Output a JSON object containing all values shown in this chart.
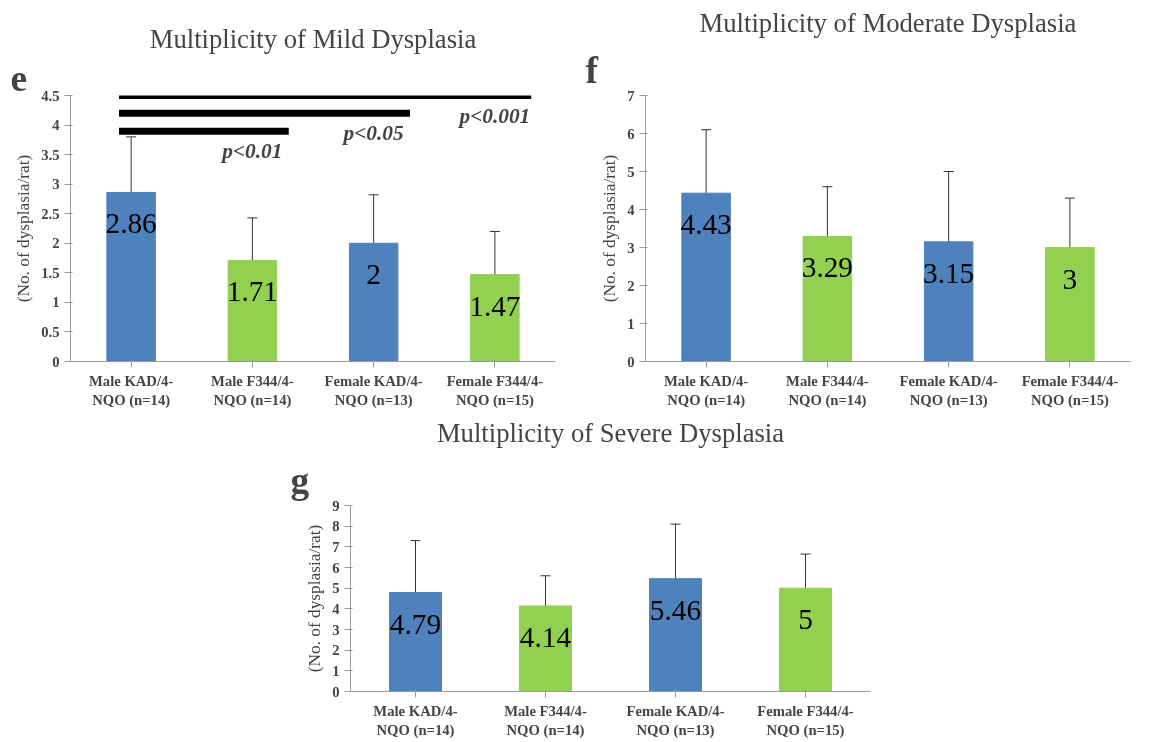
{
  "chart_data": [
    {
      "type": "bar",
      "title": "Multiplicity of Mild Dysplasia",
      "ylabel": "(No. of dysplasia/rat)",
      "categories": [
        "Male KAD/4-\nNQO (n=14)",
        "Male F344/4-\nNQO (n=14)",
        "Female KAD/4-\nNQO (n=13)",
        "Female F344/4-\nNQO (n=15)"
      ],
      "values": [
        2.86,
        1.71,
        2,
        1.47
      ],
      "colors": [
        "#4f81bd",
        "#92d050",
        "#4f81bd",
        "#92d050"
      ],
      "errors": [
        [
          2.86,
          3.8
        ],
        [
          1.71,
          2.43
        ],
        [
          2,
          2.82
        ],
        [
          1.47,
          2.2
        ]
      ],
      "ylim": [
        0,
        4.5
      ],
      "yticks": [
        0,
        0.5,
        1,
        1.5,
        2,
        2.5,
        3,
        3.5,
        4,
        4.5
      ],
      "data_labels": true,
      "grid": false,
      "annotations": [
        "e",
        "p<0.01",
        "p<0.05",
        "p<0.001"
      ]
    },
    {
      "type": "bar",
      "title": "Multiplicity of Moderate Dysplasia",
      "ylabel": "(No. of dysplasia/rat)",
      "categories": [
        "Male KAD/4-\nNQO (n=14)",
        "Male F344/4-\nNQO (n=14)",
        "Female KAD/4-\nNQO (n=13)",
        "Female F344/4-\nNQO (n=15)"
      ],
      "values": [
        4.43,
        3.29,
        3.15,
        3
      ],
      "colors": [
        "#4f81bd",
        "#92d050",
        "#4f81bd",
        "#92d050"
      ],
      "errors": [
        [
          4.43,
          6.1
        ],
        [
          3.29,
          4.6
        ],
        [
          3.15,
          5.0
        ],
        [
          3,
          4.3
        ]
      ],
      "ylim": [
        0,
        7
      ],
      "yticks": [
        0,
        1,
        2,
        3,
        4,
        5,
        6,
        7
      ],
      "data_labels": true,
      "grid": false,
      "annotations": [
        "f"
      ]
    },
    {
      "type": "bar",
      "title": "Multiplicity of Severe Dysplasia",
      "ylabel": "(No. of dysplasia/rat)",
      "categories": [
        "Male KAD/4-\nNQO (n=14)",
        "Male F344/4-\nNQO (n=14)",
        "Female KAD/4-\nNQO (n=13)",
        "Female F344/4-\nNQO (n=15)"
      ],
      "values": [
        4.79,
        4.14,
        5.46,
        5
      ],
      "colors": [
        "#4f81bd",
        "#92d050",
        "#4f81bd",
        "#92d050"
      ],
      "errors": [
        [
          4.79,
          7.3
        ],
        [
          4.14,
          5.6
        ],
        [
          5.46,
          8.1
        ],
        [
          5,
          6.65
        ]
      ],
      "ylim": [
        0,
        9
      ],
      "yticks": [
        0,
        1,
        2,
        3,
        4,
        5,
        6,
        7,
        8,
        9
      ],
      "data_labels": true,
      "grid": false,
      "annotations": [
        "g"
      ]
    }
  ]
}
